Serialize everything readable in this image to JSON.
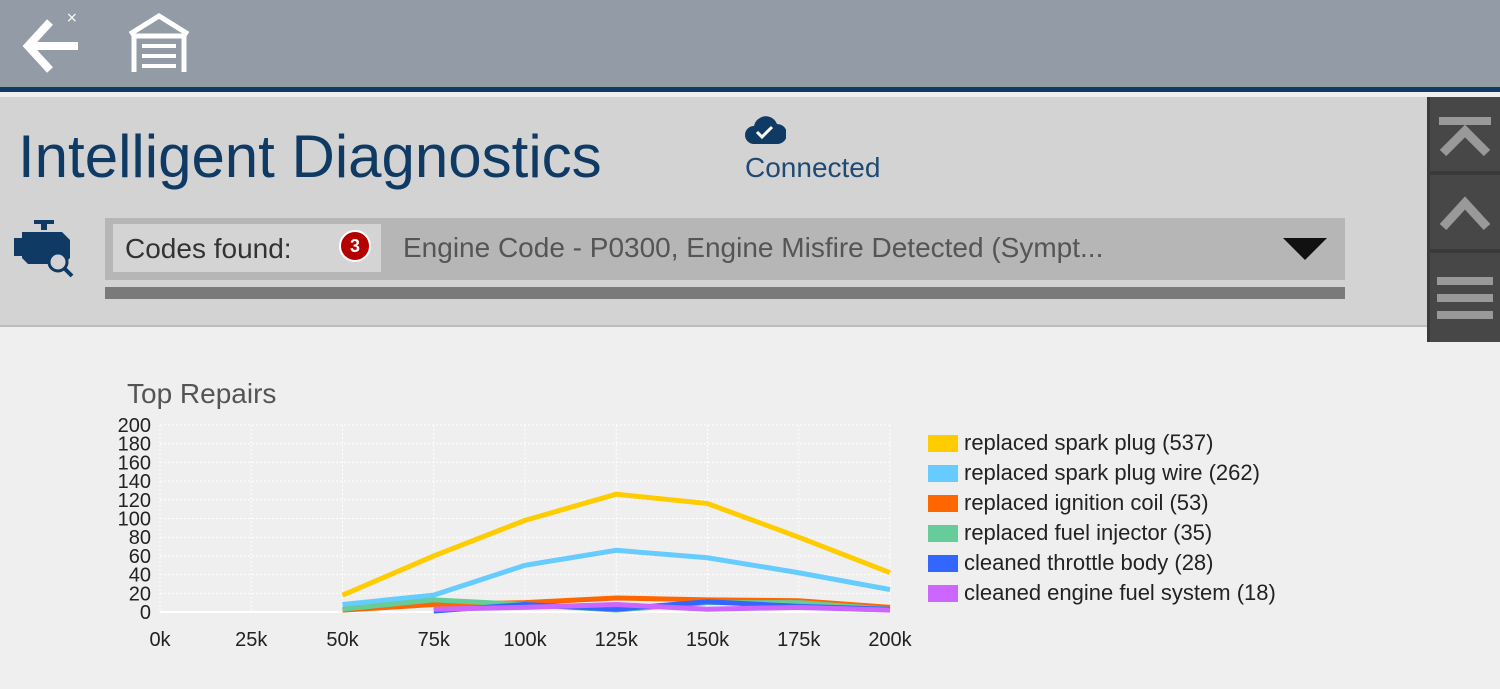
{
  "topbar": {
    "back_icon": "back-arrow-icon",
    "home_icon": "garage-icon"
  },
  "header": {
    "title": "Intelligent Diagnostics",
    "status": "Connected"
  },
  "codes": {
    "label": "Codes found:",
    "count": "3",
    "selected": "Engine Code - P0300, Engine Misfire Detected (Sympt..."
  },
  "colors": {
    "accent": "#0f3a64",
    "badge": "#b50000"
  },
  "chart_data": {
    "type": "line",
    "title": "Top Repairs",
    "x": [
      0,
      25,
      50,
      75,
      100,
      125,
      150,
      175,
      200
    ],
    "x_tick_labels": [
      "0k",
      "25k",
      "50k",
      "75k",
      "100k",
      "125k",
      "150k",
      "175k",
      "200k"
    ],
    "y_tick_labels": [
      "0",
      "20",
      "40",
      "60",
      "80",
      "100",
      "120",
      "140",
      "160",
      "180",
      "200"
    ],
    "ylim": [
      0,
      200
    ],
    "xlim": [
      0,
      200
    ],
    "grid": true,
    "legend": "right",
    "series": [
      {
        "name": "replaced spark plug (537)",
        "color": "#ffcc00",
        "x": [
          50,
          75,
          100,
          125,
          150,
          175,
          200
        ],
        "values": [
          18,
          60,
          98,
          126,
          116,
          80,
          42
        ]
      },
      {
        "name": "replaced spark plug wire (262)",
        "color": "#66ccff",
        "x": [
          50,
          75,
          100,
          125,
          150,
          175,
          200
        ],
        "values": [
          8,
          18,
          50,
          66,
          58,
          42,
          24
        ]
      },
      {
        "name": "replaced ignition coil (53)",
        "color": "#ff6600",
        "x": [
          50,
          75,
          100,
          125,
          150,
          175,
          200
        ],
        "values": [
          2,
          8,
          10,
          15,
          13,
          12,
          5
        ]
      },
      {
        "name": "replaced fuel injector (35)",
        "color": "#66cc99",
        "x": [
          50,
          75,
          100,
          125,
          150,
          175,
          200
        ],
        "values": [
          3,
          13,
          8,
          2,
          10,
          10,
          3
        ]
      },
      {
        "name": "cleaned throttle body (28)",
        "color": "#3366ff",
        "x": [
          75,
          100,
          125,
          150,
          175,
          200
        ],
        "values": [
          1,
          8,
          3,
          11,
          6,
          3
        ]
      },
      {
        "name": "cleaned engine fuel system (18)",
        "color": "#cc66ff",
        "x": [
          75,
          100,
          125,
          150,
          175,
          200
        ],
        "values": [
          3,
          5,
          8,
          3,
          5,
          2
        ]
      }
    ]
  }
}
